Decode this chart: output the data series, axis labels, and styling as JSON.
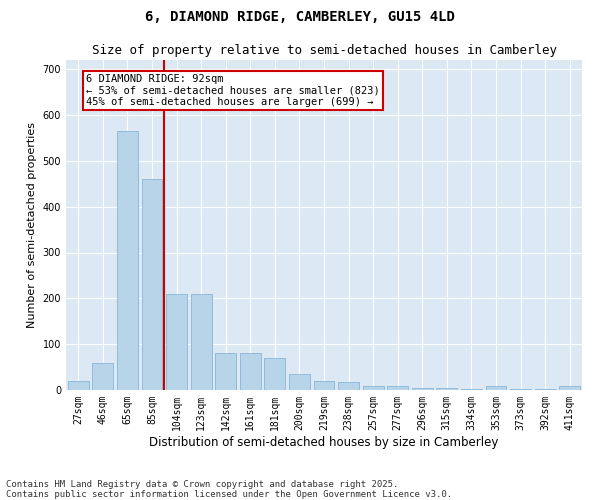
{
  "title_line1": "6, DIAMOND RIDGE, CAMBERLEY, GU15 4LD",
  "title_line2": "Size of property relative to semi-detached houses in Camberley",
  "xlabel": "Distribution of semi-detached houses by size in Camberley",
  "ylabel": "Number of semi-detached properties",
  "categories": [
    "27sqm",
    "46sqm",
    "65sqm",
    "85sqm",
    "104sqm",
    "123sqm",
    "142sqm",
    "161sqm",
    "181sqm",
    "200sqm",
    "219sqm",
    "238sqm",
    "257sqm",
    "277sqm",
    "296sqm",
    "315sqm",
    "334sqm",
    "353sqm",
    "373sqm",
    "392sqm",
    "411sqm"
  ],
  "values": [
    20,
    60,
    565,
    460,
    210,
    210,
    80,
    80,
    70,
    35,
    20,
    17,
    8,
    8,
    5,
    5,
    2,
    8,
    2,
    2,
    8
  ],
  "bar_color": "#b8d4e8",
  "bar_edge_color": "#7aaed4",
  "vline_x": 3.5,
  "vline_color": "#cc0000",
  "annotation_text": "6 DIAMOND RIDGE: 92sqm\n← 53% of semi-detached houses are smaller (823)\n45% of semi-detached houses are larger (699) →",
  "annotation_box_color": "#cc0000",
  "annotation_bg": "#ffffff",
  "ylim": [
    0,
    720
  ],
  "yticks": [
    0,
    100,
    200,
    300,
    400,
    500,
    600,
    700
  ],
  "plot_bg_color": "#dce9f5",
  "footer_line1": "Contains HM Land Registry data © Crown copyright and database right 2025.",
  "footer_line2": "Contains public sector information licensed under the Open Government Licence v3.0.",
  "title_fontsize": 10,
  "subtitle_fontsize": 9,
  "xlabel_fontsize": 8.5,
  "ylabel_fontsize": 8,
  "tick_fontsize": 7,
  "annotation_fontsize": 7.5,
  "footer_fontsize": 6.5
}
